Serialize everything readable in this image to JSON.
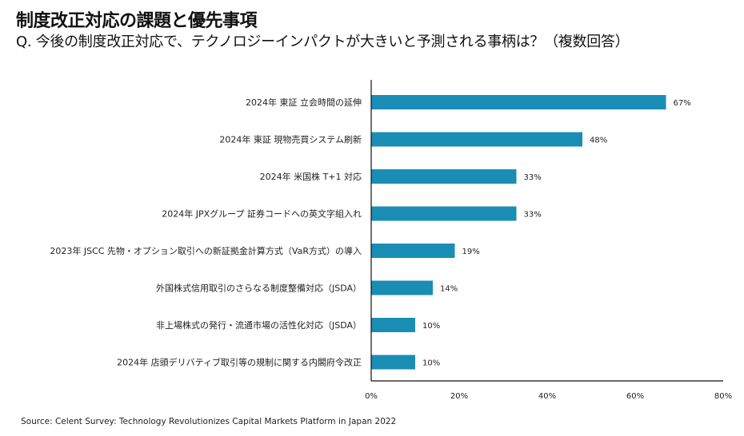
{
  "title": "制度改正対応の課題と優先事項",
  "subtitle": "Q. 今後の制度改正対応で、テクノロジーインパクトが大きいと予測される事柄は？（複数回答）",
  "source": "Source: Celent Survey: Technology Revolutionizes Capital Markets Platform in Japan 2022",
  "chart_data": {
    "type": "bar",
    "orientation": "horizontal",
    "categories": [
      "2024年 東証 立会時間の延伸",
      "2024年 東証 現物売買システム刷新",
      "2024年 米国株 T+1 対応",
      "2024年 JPXグループ 証券コードへの英文字組入れ",
      "2023年 JSCC 先物・オプション取引への新証拠金計算方式（VaR方式）の導入",
      "外国株式信用取引のさらなる制度整備対応（JSDA）",
      "非上場株式の発行・流通市場の活性化対応（JSDA）",
      "2024年 店頭デリバティブ取引等の規制に関する内閣府令改正"
    ],
    "values": [
      67,
      48,
      33,
      33,
      19,
      14,
      10,
      10
    ],
    "data_labels": [
      "67%",
      "48%",
      "33%",
      "33%",
      "19%",
      "14%",
      "10%",
      "10%"
    ],
    "xlim": [
      0,
      80
    ],
    "xticks": [
      0,
      20,
      40,
      60,
      80
    ],
    "xtick_labels": [
      "0%",
      "20%",
      "40%",
      "60%",
      "80%"
    ],
    "grid": false,
    "bar_color": "#1a8db5"
  }
}
